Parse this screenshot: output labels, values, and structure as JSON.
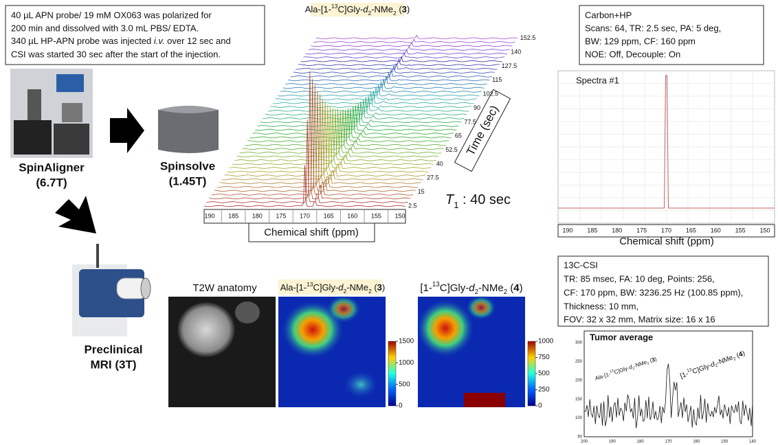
{
  "protocol": {
    "lines": [
      "40 µL APN probe/ 19 mM OX063 was polarized for",
      "200 min and dissolved with 3.0 mL PBS/ EDTA.",
      "CSI was started 30 sec after the start of the injection."
    ],
    "line3": [
      "340 µL HP-APN probe was injected ",
      "i.v.",
      " over 12 sec and"
    ]
  },
  "devices": {
    "spinaligner": {
      "name": "SpinAligner",
      "field": "(6.7T)"
    },
    "spinsolve": {
      "name": "Spinsolve",
      "field": "(1.45T)"
    },
    "mri": {
      "name": "Preclinical",
      "field": "MRI (3T)"
    }
  },
  "compounds": {
    "c3": [
      "Ala-[1-",
      "13",
      "C]Gly-",
      "d",
      "2",
      "-NMe",
      "2",
      " (",
      "3",
      ")"
    ],
    "c4": [
      "[1-",
      "13",
      "C]Gly-",
      "d",
      "2",
      "-NMe",
      "2",
      " (",
      "4",
      ")"
    ]
  },
  "waterfall": {
    "xticks": [
      190,
      185,
      180,
      175,
      170,
      165,
      160,
      155,
      150
    ],
    "x_label": "Chemical shift (ppm)",
    "time_ticks": [
      2.5,
      15,
      27.5,
      40,
      52.5,
      65,
      77.5,
      90,
      102.5,
      115,
      127.5,
      140,
      152.5
    ],
    "time_label": "Time (sec)",
    "t1": [
      "T",
      "1",
      " : 40 sec"
    ]
  },
  "carbon_box": {
    "lines": [
      "Carbon+HP",
      "Scans: 64, TR: 2.5 sec, PA: 5 deg,",
      "BW: 129 ppm, CF: 160 ppm",
      "NOE: Off, Decouple: On"
    ]
  },
  "spectrum": {
    "label": "Spectra #1",
    "xticks": [
      190,
      185,
      180,
      175,
      170,
      165,
      160,
      155,
      150
    ],
    "x_label": "Chemical shift (ppm)"
  },
  "csi_box": {
    "lines": [
      "13C-CSI",
      "TR: 85 msec, FA: 10 deg, Points: 256,",
      "CF: 170 ppm, BW: 3236.25 Hz (100.85 ppm),",
      "Thickness: 10 mm,",
      "FOV: 32 x 32 mm, Matrix size: 16 x 16"
    ]
  },
  "maps": {
    "t2w_label": "T2W anatomy",
    "colorbar3": [
      0,
      500,
      1000,
      1500
    ],
    "colorbar4": [
      0,
      250,
      500,
      750,
      1000
    ]
  },
  "tumor": {
    "title": "Tumor average",
    "yticks": [
      50,
      100,
      150,
      200,
      250,
      300
    ],
    "xticks": [
      200,
      190,
      180,
      170,
      160,
      150,
      140
    ]
  }
}
